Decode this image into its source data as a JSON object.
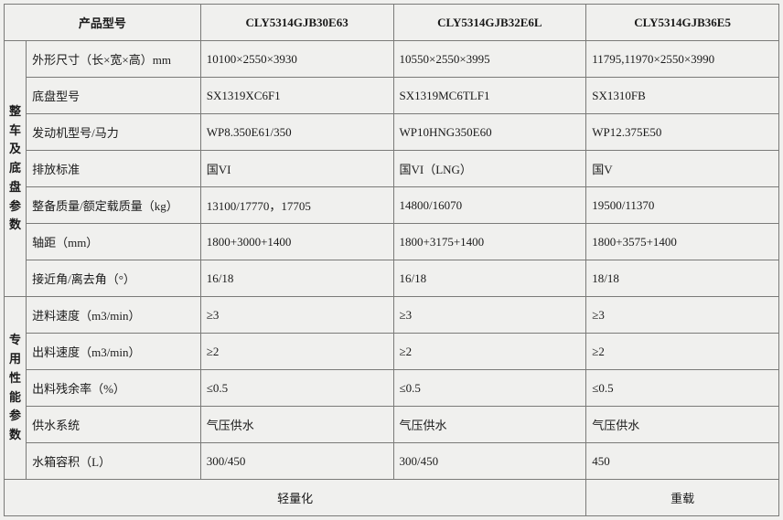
{
  "header": {
    "model_label": "产品型号",
    "m1": "CLY5314GJB30E63",
    "m2": "CLY5314GJB32E6L",
    "m3": "CLY5314GJB36E5"
  },
  "g1": {
    "title": "整车及底盘参数",
    "r0": {
      "label": "外形尺寸（长×宽×高）mm",
      "v1": "10100×2550×3930",
      "v2": "10550×2550×3995",
      "v3": "11795,11970×2550×3990"
    },
    "r1": {
      "label": "底盘型号",
      "v1": "SX1319XC6F1",
      "v2": "SX1319MC6TLF1",
      "v3": "SX1310FB"
    },
    "r2": {
      "label": "发动机型号/马力",
      "v1": "WP8.350E61/350",
      "v2": "WP10HNG350E60",
      "v3": "WP12.375E50"
    },
    "r3": {
      "label": "排放标准",
      "v1": "国VI",
      "v2": "国VI（LNG）",
      "v3": "国V"
    },
    "r4": {
      "label": "整备质量/额定载质量（kg）",
      "v1": "13100/17770，17705",
      "v2": "14800/16070",
      "v3": "19500/11370"
    },
    "r5": {
      "label": "轴距（mm）",
      "v1": "1800+3000+1400",
      "v2": "1800+3175+1400",
      "v3": "1800+3575+1400"
    },
    "r6": {
      "label": "接近角/离去角（°）",
      "v1": "16/18",
      "v2": "16/18",
      "v3": "18/18"
    }
  },
  "g2": {
    "title": "专用性能参数",
    "r0": {
      "label": "进料速度（m3/min）",
      "v1": "≥3",
      "v2": "≥3",
      "v3": "≥3"
    },
    "r1": {
      "label": "出料速度（m3/min）",
      "v1": "≥2",
      "v2": "≥2",
      "v3": "≥2"
    },
    "r2": {
      "label": "出料残余率（%）",
      "v1": "≤0.5",
      "v2": "≤0.5",
      "v3": "≤0.5"
    },
    "r3": {
      "label": "供水系统",
      "v1": "气压供水",
      "v2": "气压供水",
      "v3": "气压供水"
    },
    "r4": {
      "label": "水箱容积（L）",
      "v1": "300/450",
      "v2": "300/450",
      "v3": "450"
    }
  },
  "footer": {
    "left": "轻量化",
    "right": "重载"
  }
}
